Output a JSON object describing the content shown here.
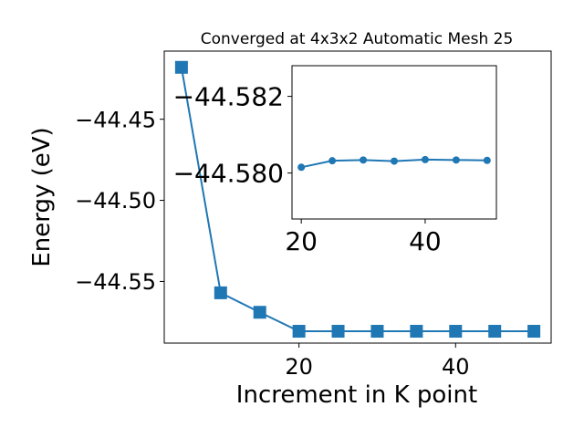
{
  "colors": {
    "series": "#1f77b4",
    "axes": "#000000",
    "background": "#ffffff"
  },
  "chart_data": [
    {
      "type": "line",
      "title": "Converged at 4x3x2 Automatic Mesh 25",
      "xlabel": "Increment in K point",
      "ylabel": "Energy (eV)",
      "marker": "square",
      "xlim": [
        2.8,
        52.2
      ],
      "ylim": [
        -44.588,
        -44.408
      ],
      "xticks": [
        20,
        40
      ],
      "xtick_labels": [
        "20",
        "40"
      ],
      "yticks": [
        -44.45,
        -44.5,
        -44.55
      ],
      "ytick_labels": [
        "−44.45",
        "−44.50",
        "−44.55"
      ],
      "grid": false,
      "x": [
        5,
        10,
        15,
        20,
        25,
        30,
        35,
        40,
        45,
        50
      ],
      "y": [
        -44.418,
        -44.557,
        -44.569,
        -44.5807,
        -44.5807,
        -44.5807,
        -44.5807,
        -44.5807,
        -44.5807,
        -44.5807
      ]
    },
    {
      "type": "line",
      "title": "",
      "xlabel": "",
      "ylabel": "",
      "marker": "circle",
      "xlim": [
        18.5,
        51.5
      ],
      "ylim": [
        -44.5788,
        -44.5828
      ],
      "xticks": [
        20,
        40
      ],
      "xtick_labels": [
        "20",
        "40"
      ],
      "yticks": [
        -44.582,
        -44.58
      ],
      "ytick_labels": [
        "−44.582",
        "−44.580"
      ],
      "grid": false,
      "x": [
        20,
        25,
        30,
        35,
        40,
        45,
        50
      ],
      "y": [
        -44.58015,
        -44.58032,
        -44.58034,
        -44.58031,
        -44.58035,
        -44.58034,
        -44.58033
      ]
    }
  ]
}
